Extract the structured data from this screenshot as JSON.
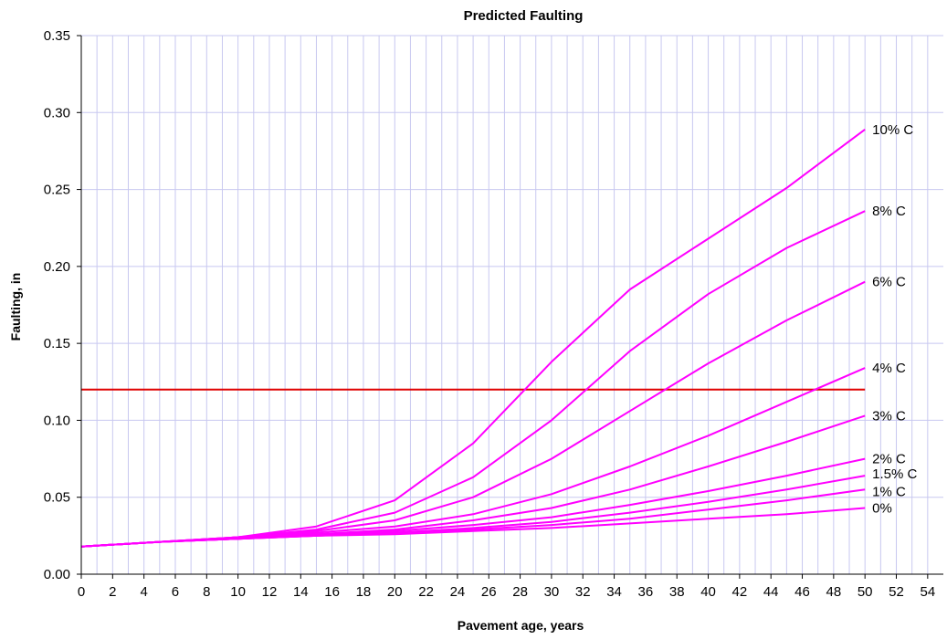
{
  "chart_data": {
    "type": "line",
    "title": "Predicted Faulting",
    "xlabel": "Pavement age, years",
    "ylabel": "Faulting, in",
    "xlim": [
      0,
      55
    ],
    "ylim": [
      0,
      0.35
    ],
    "x_ticks": [
      0,
      2,
      4,
      6,
      8,
      10,
      12,
      14,
      16,
      18,
      20,
      22,
      24,
      26,
      28,
      30,
      32,
      34,
      36,
      38,
      40,
      42,
      44,
      46,
      48,
      50,
      52,
      54
    ],
    "y_ticks": [
      "0.00",
      "0.05",
      "0.10",
      "0.15",
      "0.20",
      "0.25",
      "0.30",
      "0.35"
    ],
    "grid": true,
    "legend": "direct labels at line ends (right)",
    "colors": {
      "series": "#ff00ff",
      "threshold": "#e00000",
      "grid": "#c8c8f0"
    },
    "threshold": {
      "y": 0.12,
      "x_start": 0,
      "x_end": 50
    },
    "x": [
      0,
      5,
      10,
      15,
      20,
      25,
      30,
      35,
      40,
      45,
      50
    ],
    "series": [
      {
        "name": "10% C",
        "values": [
          0.018,
          0.021,
          0.024,
          0.031,
          0.048,
          0.085,
          0.138,
          0.185,
          0.218,
          0.251,
          0.289
        ]
      },
      {
        "name": "8% C",
        "values": [
          0.018,
          0.021,
          0.024,
          0.029,
          0.04,
          0.063,
          0.1,
          0.145,
          0.182,
          0.212,
          0.236
        ]
      },
      {
        "name": "6% C",
        "values": [
          0.018,
          0.021,
          0.024,
          0.028,
          0.035,
          0.05,
          0.075,
          0.106,
          0.137,
          0.165,
          0.19
        ]
      },
      {
        "name": "4% C",
        "values": [
          0.018,
          0.021,
          0.024,
          0.027,
          0.031,
          0.039,
          0.052,
          0.07,
          0.09,
          0.112,
          0.134
        ]
      },
      {
        "name": "3% C",
        "values": [
          0.018,
          0.021,
          0.023,
          0.026,
          0.029,
          0.035,
          0.043,
          0.055,
          0.07,
          0.086,
          0.103
        ]
      },
      {
        "name": "2% C",
        "values": [
          0.018,
          0.021,
          0.023,
          0.026,
          0.028,
          0.032,
          0.037,
          0.045,
          0.054,
          0.064,
          0.075
        ]
      },
      {
        "name": "1.5% C",
        "values": [
          0.018,
          0.021,
          0.023,
          0.025,
          0.027,
          0.03,
          0.034,
          0.04,
          0.047,
          0.055,
          0.064
        ]
      },
      {
        "name": "1% C",
        "values": [
          0.018,
          0.021,
          0.023,
          0.025,
          0.027,
          0.029,
          0.032,
          0.036,
          0.042,
          0.048,
          0.055
        ]
      },
      {
        "name": "0%",
        "values": [
          0.018,
          0.021,
          0.023,
          0.025,
          0.026,
          0.028,
          0.03,
          0.033,
          0.036,
          0.039,
          0.043
        ]
      }
    ]
  }
}
